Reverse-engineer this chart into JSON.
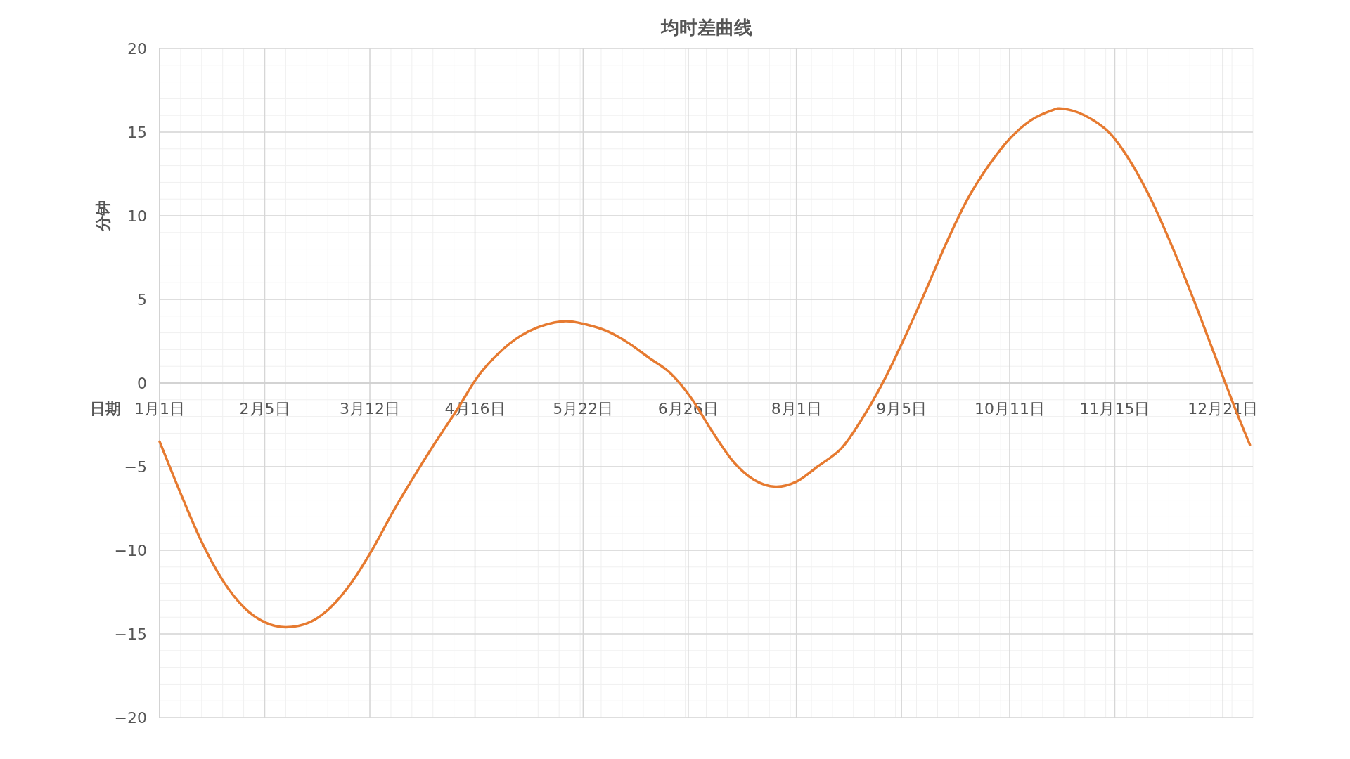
{
  "chart_data": {
    "type": "line",
    "title": "均时差曲线",
    "xlabel": "日期",
    "ylabel": "分钟",
    "x": [
      "--01-01",
      "--01-08",
      "--01-15",
      "--01-22",
      "--01-29",
      "--02-05",
      "--02-12",
      "--02-20",
      "--02-27",
      "--03-06",
      "--03-13",
      "--03-20",
      "--03-27",
      "--04-03",
      "--04-10",
      "--04-17",
      "--04-24",
      "--05-01",
      "--05-08",
      "--05-16",
      "--05-23",
      "--05-30",
      "--06-06",
      "--06-13",
      "--06-20",
      "--06-27",
      "--07-04",
      "--07-11",
      "--07-18",
      "--07-25",
      "--08-01",
      "--08-08",
      "--08-16",
      "--08-23",
      "--08-30",
      "--09-06",
      "--09-13",
      "--09-20",
      "--09-27",
      "--10-04",
      "--10-11",
      "--10-18",
      "--10-25",
      "--10-29",
      "--11-05",
      "--11-13",
      "--11-20",
      "--11-27",
      "--12-04",
      "--12-11",
      "--12-18",
      "--12-25",
      "--12-30"
    ],
    "values": [
      -3.5,
      -6.6,
      -9.5,
      -11.8,
      -13.4,
      -14.3,
      -14.6,
      -14.3,
      -13.4,
      -11.9,
      -9.9,
      -7.6,
      -5.5,
      -3.5,
      -1.6,
      0.4,
      1.8,
      2.8,
      3.4,
      3.7,
      3.5,
      3.1,
      2.4,
      1.5,
      0.6,
      -0.9,
      -2.9,
      -4.7,
      -5.8,
      -6.2,
      -5.9,
      -5.0,
      -3.9,
      -2.1,
      0.1,
      2.7,
      5.5,
      8.4,
      11.0,
      13.0,
      14.6,
      15.7,
      16.3,
      16.4,
      16.0,
      15.0,
      13.3,
      11.0,
      8.2,
      5.1,
      1.8,
      -1.5,
      -3.7
    ],
    "color": "#e67a30",
    "grid": true,
    "xlim": [
      "--01-01",
      "--12-31"
    ],
    "xticks": [
      {
        "value": "--01-01",
        "label": "1月1日"
      },
      {
        "value": "--02-05",
        "label": "2月5日"
      },
      {
        "value": "--03-12",
        "label": "3月12日"
      },
      {
        "value": "--04-16",
        "label": "4月16日"
      },
      {
        "value": "--05-22",
        "label": "5月22日"
      },
      {
        "value": "--06-26",
        "label": "6月26日"
      },
      {
        "value": "--08-01",
        "label": "8月1日"
      },
      {
        "value": "--09-05",
        "label": "9月5日"
      },
      {
        "value": "--10-11",
        "label": "10月11日"
      },
      {
        "value": "--11-15",
        "label": "11月15日"
      },
      {
        "value": "--12-21",
        "label": "12月21日"
      }
    ],
    "ylim": [
      -20,
      20
    ],
    "yticks": [
      -20,
      -15,
      -10,
      -5,
      0,
      5,
      10,
      15,
      20
    ]
  }
}
